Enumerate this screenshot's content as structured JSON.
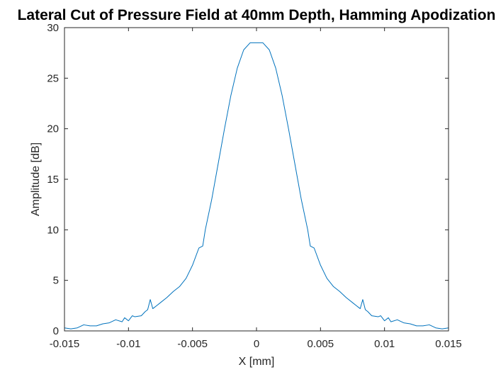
{
  "chart_data": {
    "type": "line",
    "title": "Lateral Cut of Pressure Field at 40mm Depth, Hamming Apodization",
    "xlabel": "X [mm]",
    "ylabel": "Amplitude [dB]",
    "xlim": [
      -0.015,
      0.015
    ],
    "ylim": [
      0,
      30
    ],
    "xticks": [
      -0.015,
      -0.01,
      -0.005,
      0,
      0.005,
      0.01,
      0.015
    ],
    "xtick_labels": [
      "-0.015",
      "-0.01",
      "-0.005",
      "0",
      "0.005",
      "0.01",
      "0.015"
    ],
    "yticks": [
      0,
      5,
      10,
      15,
      20,
      25,
      30
    ],
    "ytick_labels": [
      "0",
      "5",
      "10",
      "15",
      "20",
      "25",
      "30"
    ],
    "grid": false,
    "line_color": "#0072BD",
    "series": [
      {
        "x": [
          -0.015,
          -0.0145,
          -0.014,
          -0.0135,
          -0.013,
          -0.0125,
          -0.012,
          -0.0115,
          -0.011,
          -0.0105,
          -0.0103,
          -0.01,
          -0.0097,
          -0.0095,
          -0.009,
          -0.0087,
          -0.0085,
          -0.0083,
          -0.0081,
          -0.008,
          -0.0078,
          -0.0075,
          -0.007,
          -0.0065,
          -0.006,
          -0.0055,
          -0.005,
          -0.0045,
          -0.0042,
          -0.004,
          -0.0035,
          -0.003,
          -0.0025,
          -0.002,
          -0.0015,
          -0.001,
          -0.0005,
          -0.0003,
          0,
          0.0003,
          0.0005,
          0.001,
          0.0015,
          0.002,
          0.0025,
          0.003,
          0.0035,
          0.004,
          0.0042,
          0.0045,
          0.005,
          0.0055,
          0.006,
          0.0065,
          0.007,
          0.0075,
          0.0078,
          0.008,
          0.0081,
          0.0083,
          0.0085,
          0.0087,
          0.009,
          0.0095,
          0.0097,
          0.01,
          0.0103,
          0.0105,
          0.011,
          0.0115,
          0.012,
          0.0125,
          0.013,
          0.0135,
          0.014,
          0.0145,
          0.015
        ],
        "y": [
          0.3,
          0.2,
          0.3,
          0.6,
          0.5,
          0.5,
          0.7,
          0.8,
          1.1,
          0.9,
          1.3,
          1.0,
          1.5,
          1.4,
          1.5,
          1.9,
          2.1,
          3.1,
          2.2,
          2.3,
          2.5,
          2.8,
          3.3,
          3.9,
          4.4,
          5.2,
          6.5,
          8.2,
          8.4,
          10.0,
          13.0,
          16.5,
          20.0,
          23.3,
          26.0,
          27.8,
          28.5,
          28.5,
          28.5,
          28.5,
          28.5,
          27.8,
          26.0,
          23.3,
          20.0,
          16.5,
          13.0,
          10.0,
          8.4,
          8.2,
          6.5,
          5.2,
          4.4,
          3.9,
          3.3,
          2.8,
          2.5,
          2.3,
          2.2,
          3.1,
          2.1,
          1.9,
          1.5,
          1.4,
          1.5,
          1.0,
          1.3,
          0.9,
          1.1,
          0.8,
          0.7,
          0.5,
          0.5,
          0.6,
          0.3,
          0.2,
          0.3
        ]
      }
    ]
  }
}
